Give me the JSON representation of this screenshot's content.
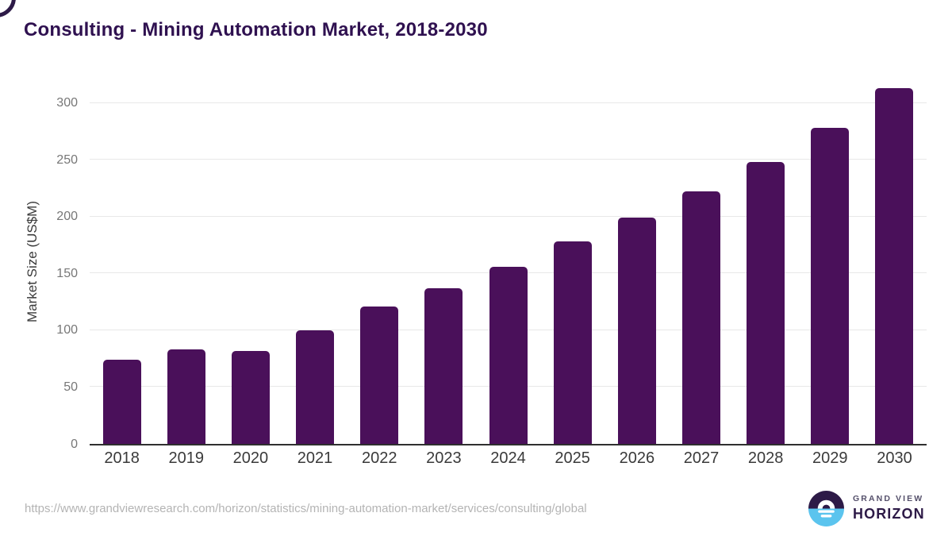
{
  "title": "Consulting - Mining Automation Market, 2018-2030",
  "chart_data": {
    "type": "bar",
    "title": "Consulting - Mining Automation Market, 2018-2030",
    "categories": [
      "2018",
      "2019",
      "2020",
      "2021",
      "2022",
      "2023",
      "2024",
      "2025",
      "2026",
      "2027",
      "2028",
      "2029",
      "2030"
    ],
    "values": [
      74,
      83,
      82,
      100,
      121,
      137,
      156,
      178,
      199,
      222,
      248,
      278,
      313
    ],
    "xlabel": "",
    "ylabel": "Market Size (US$M)",
    "yticks": [
      0,
      50,
      100,
      150,
      200,
      250,
      300
    ],
    "ylim": [
      0,
      320
    ],
    "grid": true,
    "legend": false,
    "bar_color": "#4a105a"
  },
  "footer": {
    "source_url": "https://www.grandviewresearch.com/horizon/statistics/mining-automation-market/services/consulting/global",
    "logo": {
      "line1": "GRAND VIEW",
      "line2": "HORIZON",
      "icon": "horizon-sunrise-icon"
    }
  },
  "colors": {
    "bar": "#4a105a",
    "title_text": "#2f1150",
    "axis_text": "#3a3a3a",
    "tick_text": "#777777",
    "gridline": "#e8e8e8",
    "baseline": "#2f2f2f",
    "url_text": "#b4b4b4",
    "logo_purple": "#2d1a47",
    "logo_blue": "#5bc4ee"
  }
}
